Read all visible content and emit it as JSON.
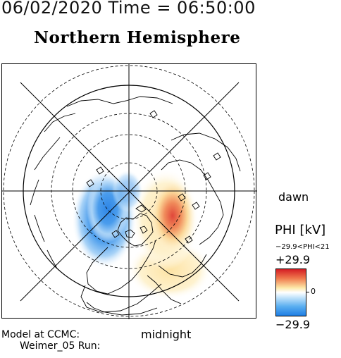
{
  "header": "06/02/2020 Time = 06:50:00",
  "title": "Northern Hemisphere",
  "map": {
    "projection": "polar stereographic, north pole centered",
    "grid": "concentric latitude circles (dashed and solid) with radial local-time lines every 3 hours",
    "overlay": "electric potential contours: negative cell (blue) on dusk/midnight side, positive cell (red/yellow) on dawn side"
  },
  "labels": {
    "dawn": "dawn",
    "midnight": "midnight"
  },
  "colorbar": {
    "variable": "PHI [kV]",
    "range_text": "−29.9<PHI<21",
    "max": "+29.9",
    "zero": "0",
    "min": "−29.9",
    "colors": {
      "positive": "#d41e24",
      "neutral": "#ffffff",
      "negative": "#1f7ee4"
    }
  },
  "footer": {
    "model": "Model at CCMC:",
    "run": "Weimer_05 Run:"
  }
}
